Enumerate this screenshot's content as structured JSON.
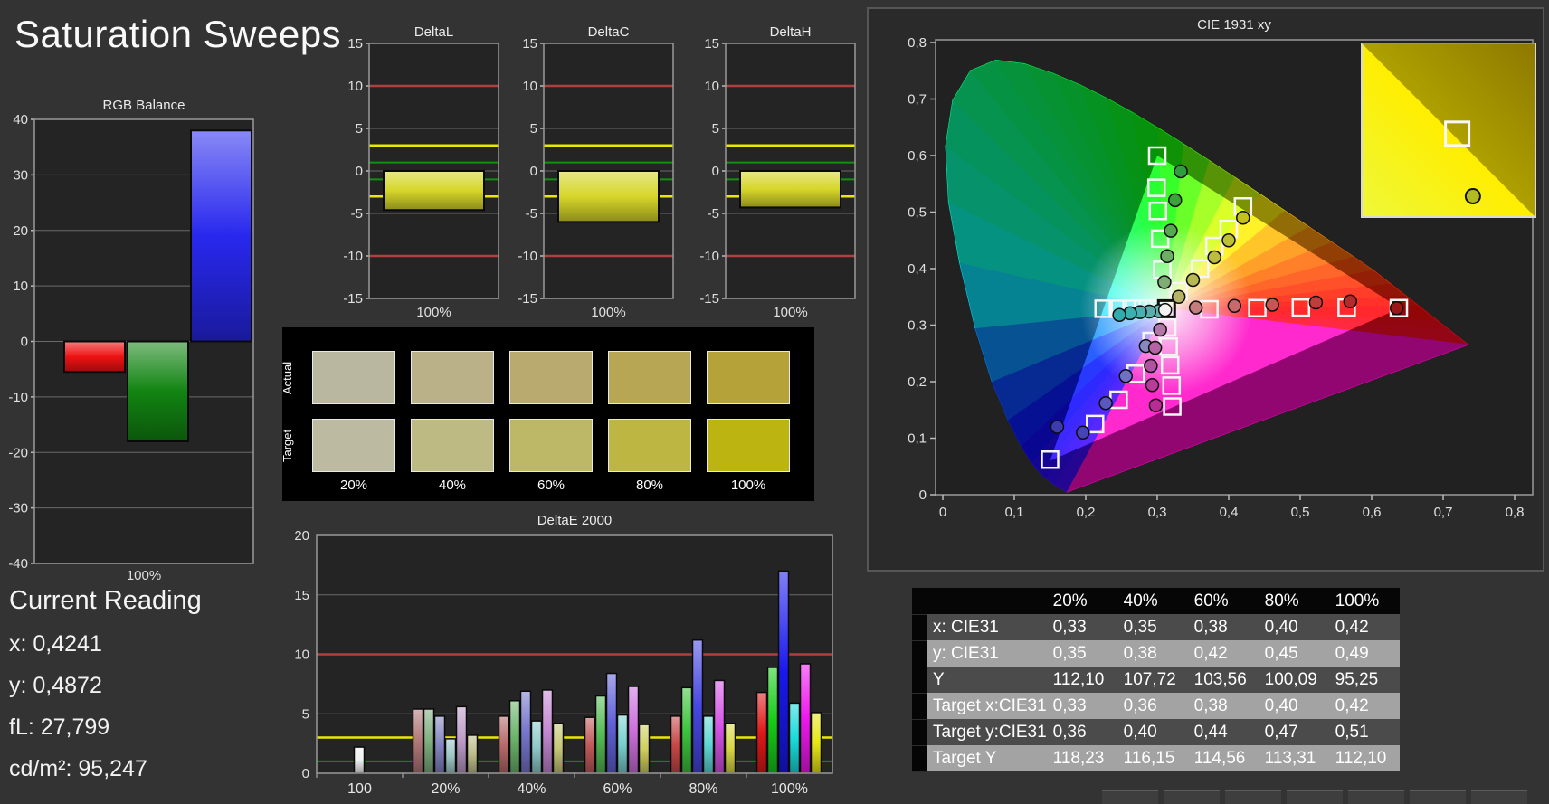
{
  "page": {
    "title": "Saturation Sweeps"
  },
  "current_reading": {
    "title": "Current Reading",
    "lines": [
      "x: 0,4241",
      "y: 0,4872",
      "fL: 27,799",
      "cd/m²: 95,247"
    ]
  },
  "limit_colors": {
    "red": "#b04040",
    "yellow": "#e8e800",
    "green": "#119111"
  },
  "bottom_strip_segments": 7,
  "chart_data": [
    {
      "id": "rgb_balance",
      "type": "bar",
      "title": "RGB Balance",
      "categories": [
        "Red",
        "Green",
        "Blue"
      ],
      "values": [
        -5.5,
        -18,
        38
      ],
      "bar_colors": [
        "#ee1212",
        "#128412",
        "#2828ee"
      ],
      "ylim": [
        -40,
        40
      ],
      "ytick_step": 10,
      "xlabel": "100%",
      "grid": true
    },
    {
      "id": "delta_l",
      "type": "mini_bar",
      "title": "DeltaL",
      "categories": [
        "100%"
      ],
      "values": [
        -4.6
      ],
      "bar_color": "#d6d62a",
      "ylim": [
        -15,
        15
      ],
      "ytick_step": 5,
      "xlabel": "100%",
      "limits": {
        "red": [
          10,
          -10
        ],
        "yellow": [
          3,
          -3
        ],
        "green": [
          1,
          -1
        ]
      }
    },
    {
      "id": "delta_c",
      "type": "mini_bar",
      "title": "DeltaC",
      "categories": [
        "100%"
      ],
      "values": [
        -6.0
      ],
      "bar_color": "#d6d62a",
      "ylim": [
        -15,
        15
      ],
      "ytick_step": 5,
      "xlabel": "100%",
      "limits": {
        "red": [
          10,
          -10
        ],
        "yellow": [
          3,
          -3
        ],
        "green": [
          1,
          -1
        ]
      }
    },
    {
      "id": "delta_h",
      "type": "mini_bar",
      "title": "DeltaH",
      "categories": [
        "100%"
      ],
      "values": [
        -4.3
      ],
      "bar_color": "#d6d62a",
      "ylim": [
        -15,
        15
      ],
      "ytick_step": 5,
      "xlabel": "100%",
      "limits": {
        "red": [
          10,
          -10
        ],
        "yellow": [
          3,
          -3
        ],
        "green": [
          1,
          -1
        ]
      }
    },
    {
      "id": "delta_e_2000",
      "type": "grouped_bar",
      "title": "DeltaE 2000",
      "ylim": [
        0,
        20
      ],
      "ytick_step": 5,
      "limits": {
        "red": [
          10
        ],
        "yellow": [
          3
        ],
        "green": [
          1
        ]
      },
      "categories": [
        "100",
        "20%",
        "40%",
        "60%",
        "80%",
        "100%"
      ],
      "groups": [
        {
          "label": "100",
          "values": [
            2.2
          ],
          "colors": [
            "#f0f0f0"
          ]
        },
        {
          "label": "20%",
          "values": [
            5.4,
            5.4,
            4.8,
            2.9,
            5.6,
            3.2
          ],
          "colors": [
            "#b07878",
            "#7fae7f",
            "#8585c2",
            "#9fc6c6",
            "#bd9cc9",
            "#bdbd8a"
          ]
        },
        {
          "label": "40%",
          "values": [
            4.8,
            6.1,
            6.9,
            4.4,
            7.0,
            4.2
          ],
          "colors": [
            "#b76a6a",
            "#6cb46c",
            "#7676cc",
            "#8fc9c9",
            "#c488d2",
            "#c6c677"
          ]
        },
        {
          "label": "60%",
          "values": [
            4.7,
            6.5,
            8.4,
            4.9,
            7.3,
            4.1
          ],
          "colors": [
            "#bf5a5a",
            "#55bb55",
            "#6161d8",
            "#79cfcf",
            "#cc70dc",
            "#cfcf60"
          ]
        },
        {
          "label": "80%",
          "values": [
            4.8,
            7.2,
            11.2,
            4.8,
            7.8,
            4.2
          ],
          "colors": [
            "#c84848",
            "#3dc43d",
            "#4747e2",
            "#5fd6d6",
            "#d653e6",
            "#d8d845"
          ]
        },
        {
          "label": "100%",
          "values": [
            6.8,
            8.9,
            17.0,
            5.9,
            9.2,
            5.1
          ],
          "colors": [
            "#e01818",
            "#18cc18",
            "#1818ee",
            "#18dcdc",
            "#ee18ee",
            "#e6e618"
          ]
        }
      ]
    },
    {
      "id": "cie_1931_xy",
      "type": "cie_scatter",
      "title": "CIE 1931 xy",
      "xlim": [
        0,
        0.8
      ],
      "ylim": [
        0,
        0.8
      ],
      "tick_step": 0.1,
      "gamut_triangle": [
        [
          0.64,
          0.33
        ],
        [
          0.3,
          0.6
        ],
        [
          0.15,
          0.06
        ]
      ],
      "white_point": {
        "target": [
          0.313,
          0.329
        ],
        "measured": [
          0.311,
          0.327
        ],
        "measured_color": "#f2f2f2"
      },
      "targets": {
        "red": [
          [
            0.373,
            0.328
          ],
          [
            0.44,
            0.33
          ],
          [
            0.501,
            0.331
          ],
          [
            0.565,
            0.331
          ],
          [
            0.638,
            0.33
          ]
        ],
        "green": [
          [
            0.307,
            0.398
          ],
          [
            0.304,
            0.453
          ],
          [
            0.301,
            0.502
          ],
          [
            0.299,
            0.543
          ],
          [
            0.3,
            0.6
          ]
        ],
        "blue": [
          [
            0.292,
            0.272
          ],
          [
            0.27,
            0.214
          ],
          [
            0.246,
            0.168
          ],
          [
            0.213,
            0.125
          ],
          [
            0.15,
            0.062
          ]
        ],
        "cyan": [
          [
            0.296,
            0.329
          ],
          [
            0.28,
            0.329
          ],
          [
            0.264,
            0.329
          ],
          [
            0.245,
            0.329
          ],
          [
            0.225,
            0.329
          ]
        ],
        "magenta": [
          [
            0.314,
            0.296
          ],
          [
            0.316,
            0.262
          ],
          [
            0.318,
            0.229
          ],
          [
            0.32,
            0.193
          ],
          [
            0.321,
            0.156
          ]
        ],
        "yellow": [
          [
            0.33,
            0.36
          ],
          [
            0.36,
            0.4
          ],
          [
            0.38,
            0.44
          ],
          [
            0.4,
            0.47
          ],
          [
            0.42,
            0.51
          ]
        ]
      },
      "measured": {
        "red": {
          "points": [
            [
              0.354,
              0.331
            ],
            [
              0.408,
              0.334
            ],
            [
              0.461,
              0.336
            ],
            [
              0.522,
              0.34
            ],
            [
              0.57,
              0.342
            ],
            [
              0.635,
              0.33
            ]
          ],
          "colors": [
            "#c47c7c",
            "#c66a6a",
            "#c85454",
            "#c23c3c",
            "#b42a2a",
            "#9c1616"
          ]
        },
        "green": {
          "points": [
            [
              0.31,
              0.376
            ],
            [
              0.314,
              0.422
            ],
            [
              0.319,
              0.467
            ],
            [
              0.325,
              0.521
            ],
            [
              0.333,
              0.572
            ]
          ],
          "colors": [
            "#7fae74",
            "#6cae64",
            "#55aa50",
            "#3da23d",
            "#2f9e3f"
          ]
        },
        "blue": {
          "points": [
            [
              0.284,
              0.263
            ],
            [
              0.256,
              0.21
            ],
            [
              0.228,
              0.162
            ],
            [
              0.196,
              0.11
            ],
            [
              0.16,
              0.12
            ]
          ],
          "colors": [
            "#8888c0",
            "#7070c4",
            "#5858c0",
            "#4444b4",
            "#3c3cb0"
          ]
        },
        "cyan": {
          "points": [
            [
              0.302,
              0.325
            ],
            [
              0.289,
              0.324
            ],
            [
              0.276,
              0.323
            ],
            [
              0.262,
              0.321
            ],
            [
              0.247,
              0.318
            ]
          ],
          "colors": [
            "#62b0ac",
            "#55b0ac",
            "#48b0ae",
            "#3cb0b0",
            "#30acac"
          ]
        },
        "magenta": {
          "points": [
            [
              0.304,
              0.292
            ],
            [
              0.297,
              0.26
            ],
            [
              0.291,
              0.228
            ],
            [
              0.293,
              0.194
            ],
            [
              0.298,
              0.158
            ]
          ],
          "colors": [
            "#b276a8",
            "#b464a4",
            "#b650a0",
            "#b83c9a",
            "#bc2a94"
          ]
        },
        "yellow": {
          "points": [
            [
              0.33,
              0.35
            ],
            [
              0.35,
              0.38
            ],
            [
              0.38,
              0.42
            ],
            [
              0.4,
              0.45
            ],
            [
              0.42,
              0.49
            ]
          ],
          "colors": [
            "#b4b464",
            "#b8b854",
            "#bcbc44",
            "#c0c034",
            "#c4c01c"
          ]
        }
      },
      "inset": {
        "square_frac": [
          0.55,
          0.52
        ],
        "circle_frac": [
          0.64,
          0.88
        ],
        "circle_color": "#b2bc1e"
      }
    },
    {
      "id": "saturation_swatches",
      "type": "swatches",
      "columns": [
        "20%",
        "40%",
        "60%",
        "80%",
        "100%"
      ],
      "rows": [
        {
          "label": "Actual",
          "colors": [
            "#b9b7a0",
            "#bab189",
            "#b9ab70",
            "#b7a755",
            "#b5a33a"
          ]
        },
        {
          "label": "Target",
          "colors": [
            "#bcbba1",
            "#bdba84",
            "#bdb867",
            "#bdb643",
            "#bcb411"
          ]
        }
      ]
    },
    {
      "id": "measurement_table",
      "type": "table",
      "columns": [
        "",
        "20%",
        "40%",
        "60%",
        "80%",
        "100%"
      ],
      "rows": [
        [
          "x: CIE31",
          "0,33",
          "0,35",
          "0,38",
          "0,40",
          "0,42"
        ],
        [
          "y: CIE31",
          "0,35",
          "0,38",
          "0,42",
          "0,45",
          "0,49"
        ],
        [
          "Y",
          "112,10",
          "107,72",
          "103,56",
          "100,09",
          "95,25"
        ],
        [
          "Target x:CIE31",
          "0,33",
          "0,36",
          "0,38",
          "0,40",
          "0,42"
        ],
        [
          "Target y:CIE31",
          "0,36",
          "0,40",
          "0,44",
          "0,47",
          "0,51"
        ],
        [
          "Target Y",
          "118,23",
          "116,15",
          "114,56",
          "113,31",
          "112,10"
        ]
      ]
    }
  ]
}
